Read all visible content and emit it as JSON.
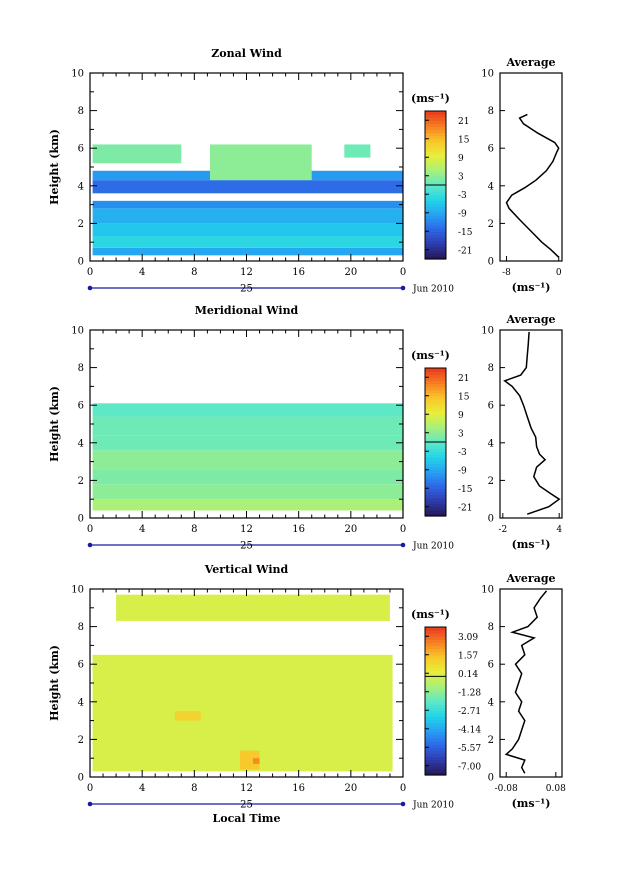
{
  "chart_data": [
    {
      "type": "heatmap",
      "title": "Zonal Wind",
      "ylabel": "Height (km)",
      "xlabel": "",
      "x_ticks": [
        "0",
        "4",
        "8",
        "12",
        "16",
        "20",
        "0"
      ],
      "y_ticks": [
        "0",
        "2",
        "4",
        "6",
        "8",
        "10"
      ],
      "xlim": [
        0,
        24
      ],
      "ylim": [
        0,
        10
      ],
      "date_label": "25",
      "month_label": "Jun 2010",
      "colorbar": {
        "units": "(ms⁻¹)",
        "ticks": [
          "21",
          "15",
          "9",
          "3",
          "-3",
          "-9",
          "-15",
          "-21"
        ],
        "range": [
          -24,
          24
        ]
      },
      "cells": [
        {
          "t0": 0.2,
          "t1": 24,
          "z0": 0.3,
          "z1": 0.7,
          "v": -9
        },
        {
          "t0": 0.2,
          "t1": 24,
          "z0": 0.7,
          "z1": 1.3,
          "v": -4
        },
        {
          "t0": 0.2,
          "t1": 24,
          "z0": 1.3,
          "z1": 2.0,
          "v": -6
        },
        {
          "t0": 0.2,
          "t1": 24,
          "z0": 2.0,
          "z1": 2.8,
          "v": -8
        },
        {
          "t0": 0.2,
          "t1": 24,
          "z0": 2.8,
          "z1": 3.2,
          "v": -11
        },
        {
          "t0": 0.2,
          "t1": 24,
          "z0": 3.6,
          "z1": 4.3,
          "v": -14
        },
        {
          "t0": 0.2,
          "t1": 24,
          "z0": 4.3,
          "z1": 4.8,
          "v": -10
        },
        {
          "t0": 0.2,
          "t1": 7,
          "z0": 5.2,
          "z1": 6.2,
          "v": 2
        },
        {
          "t0": 9.2,
          "t1": 17,
          "z0": 4.3,
          "z1": 6.2,
          "v": 3
        },
        {
          "t0": 19.5,
          "t1": 21.5,
          "z0": 5.5,
          "z1": 6.2,
          "v": 1
        }
      ],
      "average": {
        "title": "Average",
        "xlabel": "(ms⁻¹)",
        "x_ticks": [
          "-8",
          "0"
        ],
        "xlim": [
          -9,
          0.5
        ],
        "z": [
          0.2,
          0.6,
          1.0,
          1.6,
          2.2,
          2.8,
          3.1,
          3.5,
          3.9,
          4.3,
          4.8,
          5.3,
          5.8,
          6.0,
          6.3,
          6.8,
          7.3,
          7.6,
          7.8
        ],
        "u": [
          0.0,
          -1.2,
          -2.6,
          -4.3,
          -6.0,
          -7.6,
          -8.0,
          -7.2,
          -5.2,
          -3.5,
          -1.9,
          -0.9,
          -0.3,
          0.0,
          -0.6,
          -3.2,
          -5.4,
          -6.0,
          -4.8
        ]
      }
    },
    {
      "type": "heatmap",
      "title": "Meridional Wind",
      "ylabel": "Height (km)",
      "xlabel": "",
      "x_ticks": [
        "0",
        "4",
        "8",
        "12",
        "16",
        "20",
        "0"
      ],
      "y_ticks": [
        "0",
        "2",
        "4",
        "6",
        "8",
        "10"
      ],
      "xlim": [
        0,
        24
      ],
      "ylim": [
        0,
        10
      ],
      "date_label": "25",
      "month_label": "Jun 2010",
      "colorbar": {
        "units": "(ms⁻¹)",
        "ticks": [
          "21",
          "15",
          "9",
          "3",
          "-3",
          "-9",
          "-15",
          "-21"
        ],
        "range": [
          -24,
          24
        ]
      },
      "cells": [
        {
          "t0": 0.2,
          "t1": 24,
          "z0": 0.4,
          "z1": 1.0,
          "v": 5
        },
        {
          "t0": 0.2,
          "t1": 24,
          "z0": 1.0,
          "z1": 1.8,
          "v": 3
        },
        {
          "t0": 0.2,
          "t1": 24,
          "z0": 1.8,
          "z1": 2.6,
          "v": 2
        },
        {
          "t0": 0.2,
          "t1": 24,
          "z0": 2.6,
          "z1": 3.6,
          "v": 3
        },
        {
          "t0": 0.2,
          "t1": 24,
          "z0": 3.6,
          "z1": 4.4,
          "v": 1
        },
        {
          "t0": 0.2,
          "t1": 24,
          "z0": 4.4,
          "z1": 5.4,
          "v": 1
        },
        {
          "t0": 0.2,
          "t1": 24,
          "z0": 5.4,
          "z1": 6.1,
          "v": 0
        }
      ],
      "average": {
        "title": "Average",
        "xlabel": "(ms⁻¹)",
        "x_ticks": [
          "-2",
          "4"
        ],
        "xlim": [
          -2.3,
          4.3
        ],
        "z": [
          0.2,
          0.6,
          1.0,
          1.3,
          1.7,
          2.2,
          2.7,
          3.1,
          3.4,
          3.8,
          4.3,
          4.8,
          5.4,
          6.0,
          6.5,
          7.0,
          7.3,
          7.6,
          8.0,
          8.6,
          9.2,
          9.9
        ],
        "u": [
          0.6,
          2.9,
          4.0,
          3.1,
          1.9,
          1.3,
          1.6,
          2.5,
          1.9,
          1.6,
          1.5,
          1.0,
          0.6,
          0.2,
          -0.2,
          -1.0,
          -1.8,
          -0.1,
          0.5,
          0.6,
          0.7,
          0.8
        ]
      }
    },
    {
      "type": "heatmap",
      "title": "Vertical Wind",
      "ylabel": "Height (km)",
      "xlabel": "Local Time",
      "x_ticks": [
        "0",
        "4",
        "8",
        "12",
        "16",
        "20",
        "0"
      ],
      "y_ticks": [
        "0",
        "2",
        "4",
        "6",
        "8",
        "10"
      ],
      "xlim": [
        0,
        24
      ],
      "ylim": [
        0,
        10
      ],
      "date_label": "25",
      "month_label": "Jun 2010",
      "colorbar": {
        "units": "(ms⁻¹)",
        "ticks": [
          "3.09",
          "1.57",
          "0.14",
          "-1.28",
          "-2.71",
          "-4.14",
          "-5.57",
          "-7.00"
        ],
        "range": [
          -8.0,
          4.0
        ]
      },
      "cells": [
        {
          "t0": 0.2,
          "t1": 23.2,
          "z0": 0.3,
          "z1": 6.5,
          "v": 0.1
        },
        {
          "t0": 2,
          "t1": 23,
          "z0": 8.3,
          "z1": 9.7,
          "v": 0.1
        },
        {
          "t0": 6.5,
          "t1": 8.5,
          "z0": 3.0,
          "z1": 3.5,
          "v": 1.2
        },
        {
          "t0": 11.5,
          "t1": 13,
          "z0": 0.4,
          "z1": 1.4,
          "v": 1.5
        },
        {
          "t0": 12.5,
          "t1": 13,
          "z0": 0.7,
          "z1": 1.0,
          "v": 2.6
        }
      ],
      "average": {
        "title": "Average",
        "xlabel": "(ms⁻¹)",
        "x_ticks": [
          "-0.08",
          "0.08"
        ],
        "xlim": [
          -0.1,
          0.1
        ],
        "z": [
          0.2,
          0.5,
          0.9,
          1.2,
          1.5,
          2.0,
          2.5,
          3.0,
          3.5,
          4.0,
          4.5,
          5.0,
          5.5,
          6.0,
          6.5,
          7.0,
          7.4,
          7.7,
          8.0,
          8.5,
          9.0,
          9.5,
          9.9
        ],
        "u": [
          -0.02,
          -0.03,
          -0.02,
          -0.08,
          -0.06,
          -0.04,
          -0.03,
          -0.02,
          -0.04,
          -0.03,
          -0.05,
          -0.04,
          -0.03,
          -0.05,
          -0.02,
          -0.03,
          0.01,
          -0.06,
          -0.01,
          0.02,
          0.01,
          0.03,
          0.05
        ]
      }
    }
  ]
}
